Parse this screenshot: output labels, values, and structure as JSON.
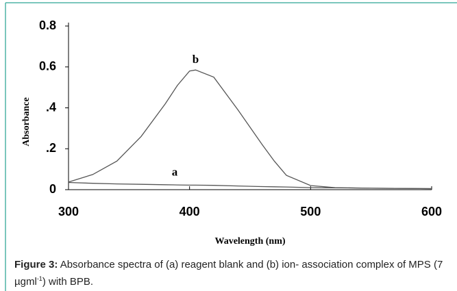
{
  "chart_data": {
    "type": "line",
    "xlabel": "Wavelength (nm)",
    "ylabel": "Absorbance",
    "x": [
      300,
      320,
      340,
      360,
      380,
      390,
      400,
      405,
      420,
      440,
      460,
      470,
      480,
      500,
      520,
      550,
      600
    ],
    "series": [
      {
        "name": "a",
        "color": "#555555",
        "values": [
          0.035,
          0.031,
          0.028,
          0.026,
          0.024,
          0.023,
          0.022,
          0.022,
          0.021,
          0.018,
          0.015,
          0.014,
          0.013,
          0.01,
          0.009,
          0.007,
          0.005
        ]
      },
      {
        "name": "b",
        "color": "#555555",
        "values": [
          0.037,
          0.074,
          0.14,
          0.26,
          0.42,
          0.51,
          0.58,
          0.585,
          0.55,
          0.39,
          0.22,
          0.14,
          0.07,
          0.02,
          0.01,
          0.007,
          0.005
        ]
      }
    ],
    "xlim": [
      300,
      600
    ],
    "xticks": [
      300,
      400,
      500,
      600
    ],
    "ylim": [
      0,
      0.8
    ],
    "yticks": [
      0,
      {
        "value": 0.2,
        "label": ".2"
      },
      {
        "value": 0.4,
        "label": ".4"
      },
      0.6,
      0.8
    ]
  },
  "caption": {
    "label": "Figure 3:",
    "text_before": "Absorbance spectra of (a) reagent blank and (b) ion- association complex of MPS (7 µgml",
    "superscript": "-1",
    "text_after": ") with BPB."
  }
}
